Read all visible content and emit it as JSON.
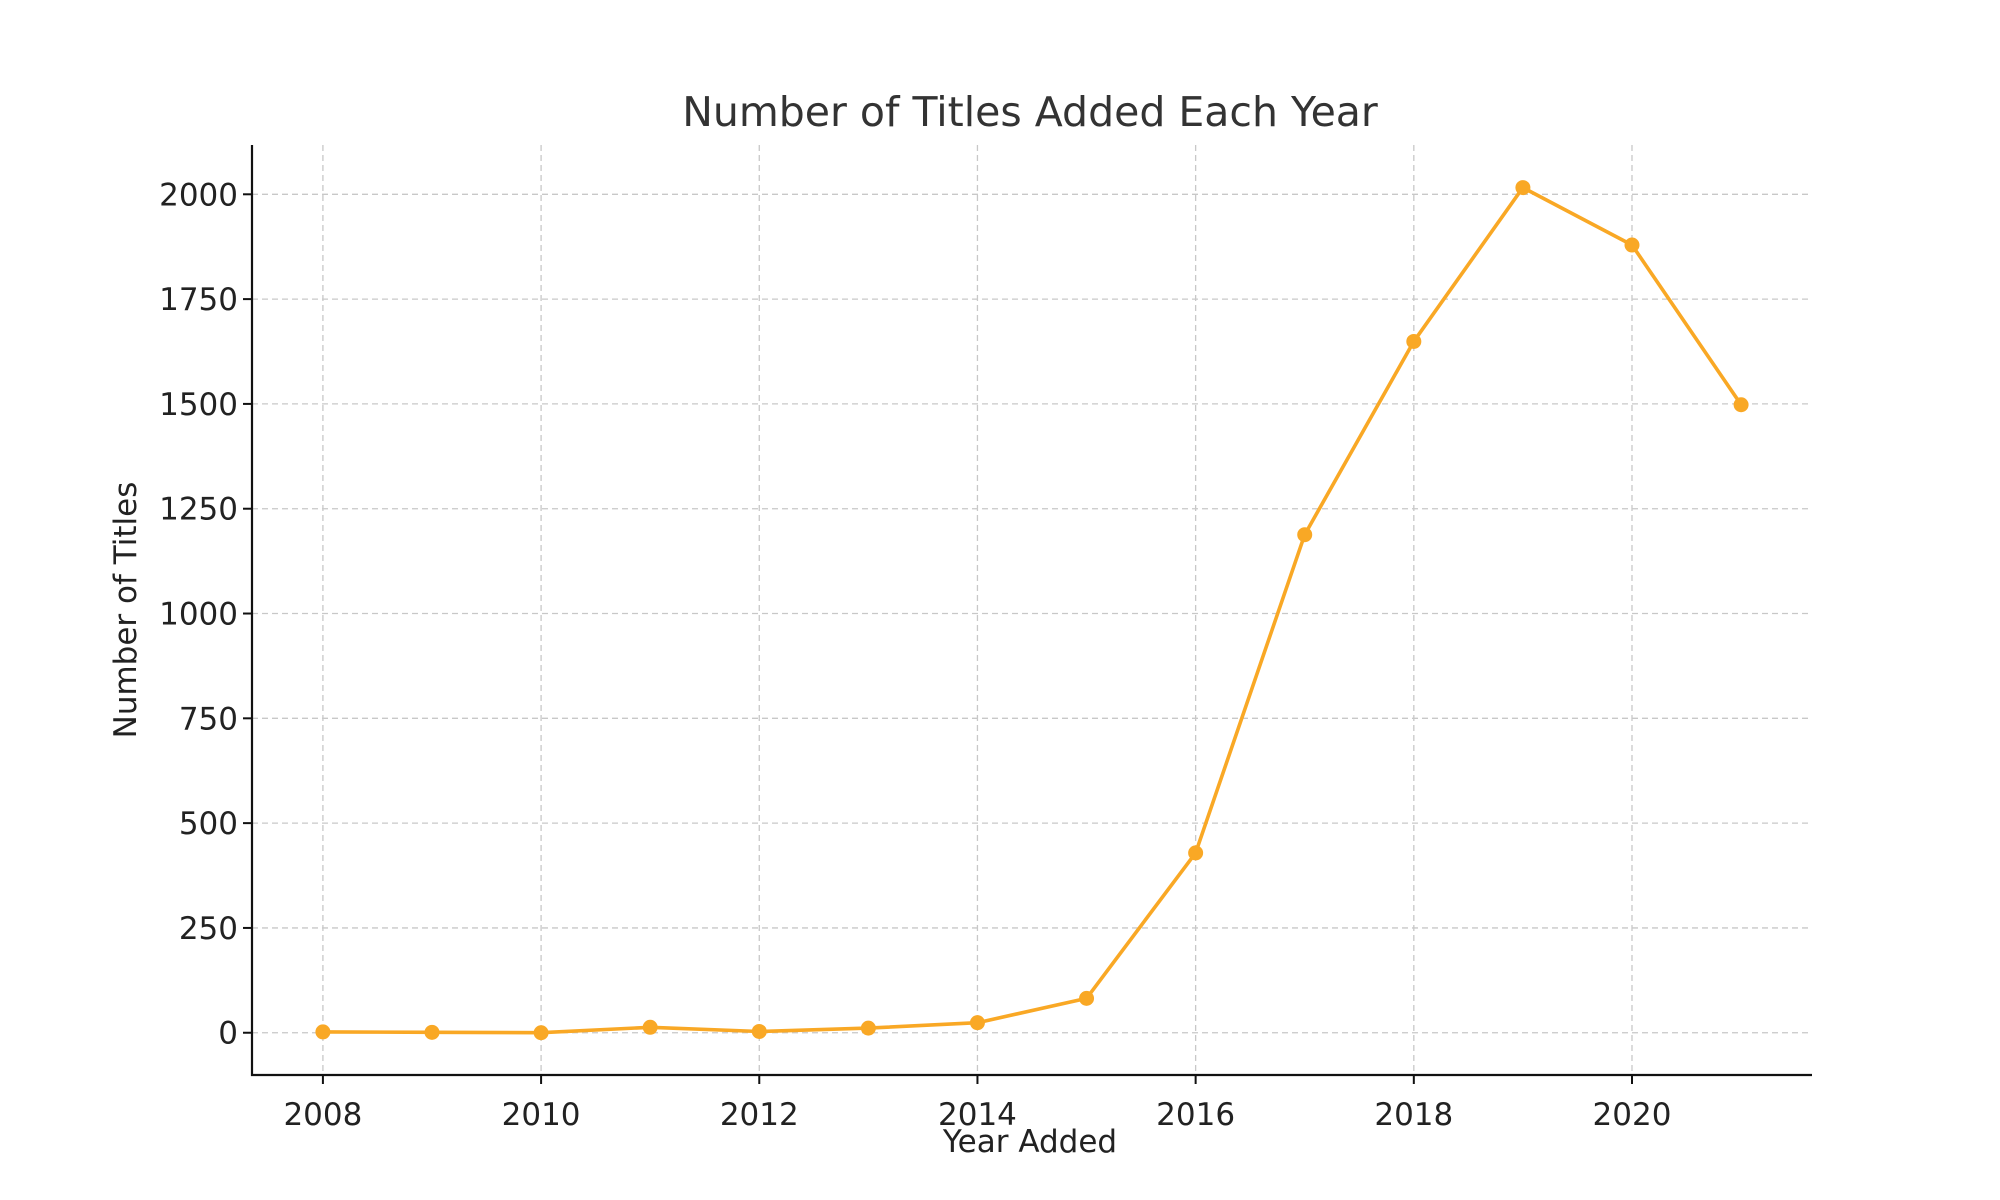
{
  "chart_data": {
    "type": "line",
    "title": "Number of Titles Added Each Year",
    "xlabel": "Year Added",
    "ylabel": "Number of Titles",
    "x": [
      2008,
      2009,
      2010,
      2011,
      2012,
      2013,
      2014,
      2015,
      2016,
      2017,
      2018,
      2019,
      2020,
      2021
    ],
    "series": [
      {
        "values": [
          2,
          1,
          0,
          13,
          3,
          11,
          24,
          82,
          429,
          1188,
          1649,
          2016,
          1879,
          1498
        ],
        "color": "#f9a825",
        "marker": "circle"
      }
    ],
    "xticks": [
      2008,
      2010,
      2012,
      2014,
      2016,
      2018,
      2020
    ],
    "xtick_labels": [
      "2008",
      "2010",
      "2012",
      "2014",
      "2016",
      "2018",
      "2020"
    ],
    "yticks": [
      0,
      250,
      500,
      750,
      1000,
      1250,
      1500,
      1750,
      2000
    ],
    "ytick_labels": [
      "0",
      "250",
      "500",
      "750",
      "1000",
      "1250",
      "1500",
      "1750",
      "2000"
    ],
    "xlim": [
      2007.35,
      2021.65
    ],
    "ylim": [
      -100.8,
      2117.6
    ],
    "grid": true,
    "legend": "none"
  }
}
